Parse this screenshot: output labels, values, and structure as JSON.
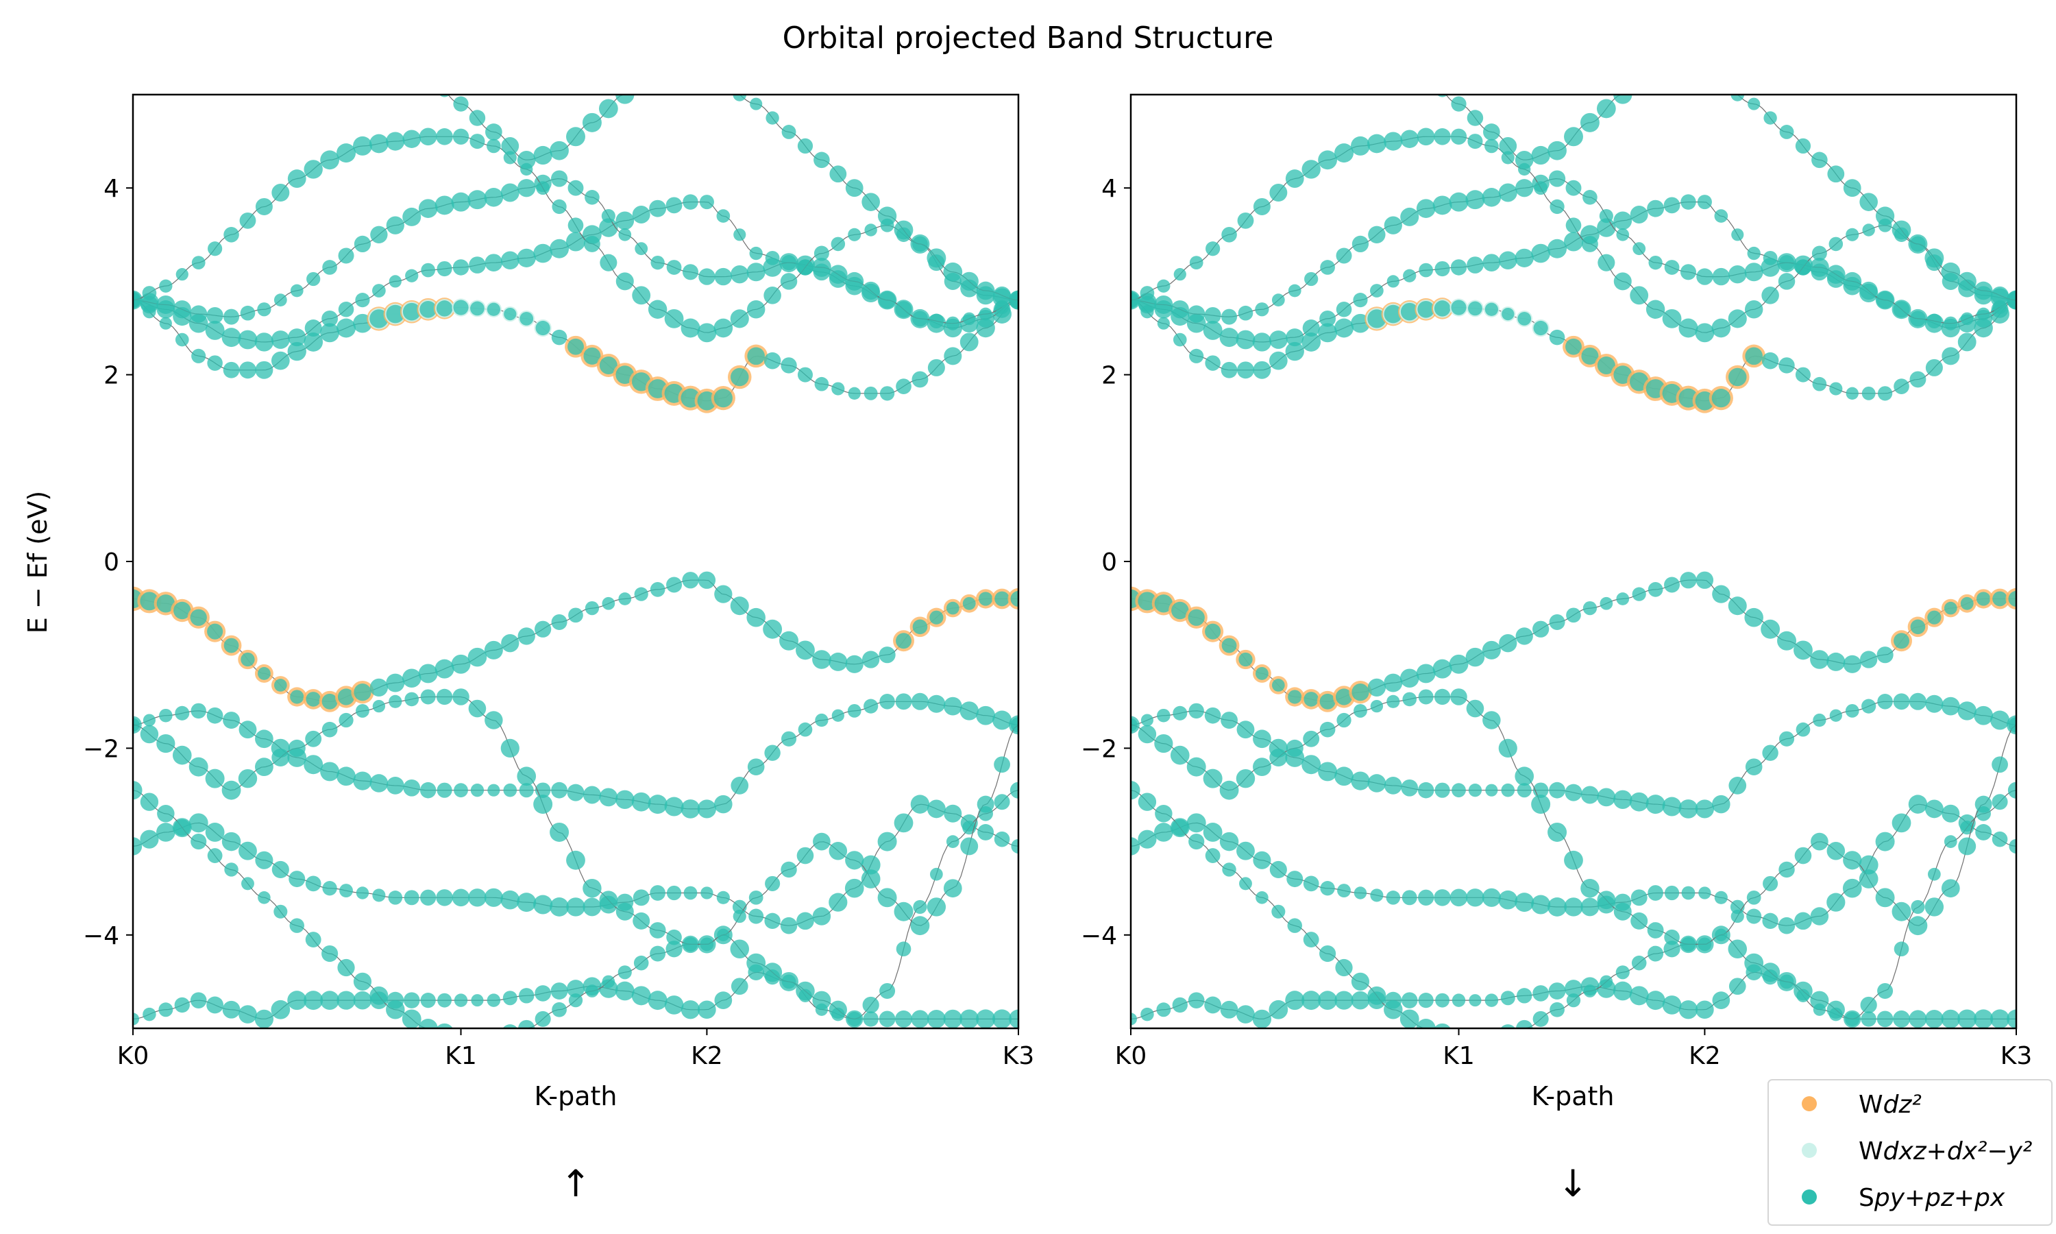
{
  "title": "Orbital projected Band Structure",
  "colors": {
    "wdz2": "#fdb462",
    "wdxz": "#ccf1ea",
    "spypzpx": "#2ebfb0",
    "band_line": "#6f6f6f"
  },
  "legend": {
    "placement": "lower-right",
    "items": [
      {
        "prefix": "W",
        "label": "dz²"
      },
      {
        "prefix": "W",
        "label": "dxz+dx²−y²"
      },
      {
        "prefix": "S",
        "label": "py+pz+px"
      }
    ]
  },
  "panels": [
    {
      "xlabel": "K-path",
      "ylabel": "E − Ef (eV)",
      "spin_label": "↑"
    },
    {
      "xlabel": "K-path",
      "ylabel": "",
      "spin_label": "↓"
    }
  ],
  "chart_data": {
    "type": "line",
    "x_ticks": [
      "K0",
      "K1",
      "K2",
      "K3"
    ],
    "x_tick_positions": [
      0,
      1,
      1.75,
      2.7
    ],
    "xlim": [
      0,
      2.7
    ],
    "ylim": [
      -5,
      5
    ],
    "y_ticks": [
      -4,
      -2,
      0,
      2,
      4
    ],
    "y_tick_labels": [
      "−4",
      "−2",
      "0",
      "2",
      "4"
    ],
    "grid": false,
    "bands": [
      {
        "x": [
          0,
          0.1,
          0.2,
          0.3,
          0.4,
          0.5,
          0.6,
          0.7,
          0.8,
          0.9,
          1.0,
          1.1,
          1.2,
          1.3,
          1.4,
          1.5,
          1.6,
          1.7,
          1.75,
          1.8,
          1.9,
          2.0,
          2.1,
          2.2,
          2.3,
          2.4,
          2.5,
          2.6,
          2.7
        ],
        "y": [
          -4.9,
          -4.8,
          -4.7,
          -4.8,
          -4.9,
          -4.7,
          -4.7,
          -4.7,
          -4.7,
          -4.7,
          -4.7,
          -4.7,
          -4.65,
          -4.6,
          -4.55,
          -4.6,
          -4.7,
          -4.8,
          -4.8,
          -4.7,
          -4.4,
          -4.5,
          -4.8,
          -4.9,
          -4.9,
          -4.9,
          -4.9,
          -4.9,
          -4.9
        ],
        "weight": "s"
      },
      {
        "x": [
          0,
          0.1,
          0.2,
          0.3,
          0.4,
          0.5,
          0.6,
          0.7,
          0.8,
          0.9,
          1.0,
          1.1,
          1.2,
          1.3,
          1.4,
          1.5,
          1.6,
          1.7,
          1.75,
          1.8,
          1.9,
          2.0,
          2.1,
          2.2,
          2.3,
          2.4,
          2.5,
          2.6,
          2.7
        ],
        "y": [
          -3.05,
          -2.9,
          -2.8,
          -3.0,
          -3.2,
          -3.4,
          -3.5,
          -3.55,
          -3.6,
          -3.6,
          -3.6,
          -3.6,
          -3.65,
          -3.7,
          -3.7,
          -3.65,
          -3.55,
          -3.55,
          -3.55,
          -3.6,
          -3.8,
          -3.9,
          -3.8,
          -3.5,
          -3.0,
          -2.6,
          -2.7,
          -2.9,
          -3.05
        ],
        "weight": "s"
      },
      {
        "x": [
          0,
          0.1,
          0.2,
          0.3,
          0.4,
          0.5,
          0.6,
          0.7,
          0.8,
          0.9,
          1.0,
          1.1,
          1.2,
          1.3,
          1.4,
          1.5,
          1.6,
          1.7,
          1.75,
          1.8,
          1.9,
          2.0,
          2.1,
          2.2,
          2.3,
          2.4,
          2.5,
          2.6,
          2.7
        ],
        "y": [
          -2.45,
          -2.7,
          -3.0,
          -3.3,
          -3.6,
          -3.9,
          -4.2,
          -4.5,
          -4.8,
          -5.0,
          -5.1,
          -5.1,
          -5.0,
          -4.8,
          -4.6,
          -4.4,
          -4.2,
          -4.1,
          -4.1,
          -4.0,
          -4.3,
          -4.5,
          -4.7,
          -4.9,
          -4.6,
          -3.7,
          -3.0,
          -2.7,
          -2.45
        ],
        "weight": "s"
      },
      {
        "x": [
          0,
          0.1,
          0.2,
          0.3,
          0.4,
          0.5,
          0.6,
          0.7,
          0.8,
          0.9,
          1.0,
          1.1,
          1.2,
          1.3,
          1.4,
          1.5,
          1.6,
          1.7,
          1.75,
          1.8,
          1.9,
          2.0,
          2.1,
          2.2,
          2.3,
          2.4,
          2.5,
          2.6,
          2.7
        ],
        "y": [
          -1.75,
          -1.65,
          -1.6,
          -1.7,
          -1.9,
          -2.1,
          -2.25,
          -2.35,
          -2.4,
          -2.45,
          -2.45,
          -2.45,
          -2.45,
          -2.45,
          -2.5,
          -2.55,
          -2.6,
          -2.65,
          -2.65,
          -2.6,
          -2.2,
          -1.9,
          -1.7,
          -1.6,
          -1.5,
          -1.5,
          -1.55,
          -1.65,
          -1.75
        ],
        "weight": "s"
      },
      {
        "x": [
          0,
          0.1,
          0.2,
          0.3,
          0.4,
          0.5,
          0.6,
          0.7,
          0.8,
          0.9,
          1.0,
          1.1,
          1.2,
          1.3,
          1.4,
          1.5,
          1.6,
          1.7,
          1.75,
          1.8,
          1.9,
          2.0,
          2.1,
          2.2,
          2.3,
          2.4,
          2.5,
          2.6,
          2.7
        ],
        "y": [
          -1.75,
          -1.95,
          -2.2,
          -2.45,
          -2.2,
          -2.0,
          -1.8,
          -1.6,
          -1.5,
          -1.45,
          -1.45,
          -1.7,
          -2.3,
          -2.9,
          -3.5,
          -3.75,
          -3.95,
          -4.1,
          -4.1,
          -4.0,
          -3.6,
          -3.3,
          -3.0,
          -3.2,
          -3.6,
          -3.9,
          -3.5,
          -2.6,
          -1.75
        ],
        "weight": "s"
      },
      {
        "x": [
          0,
          0.1,
          0.2,
          0.3,
          0.4,
          0.5,
          0.6,
          0.7,
          0.8,
          0.9,
          1.0,
          1.1,
          1.2,
          1.3,
          1.4,
          1.5,
          1.6,
          1.7,
          1.75,
          1.8,
          1.9,
          2.0,
          2.1,
          2.2,
          2.3,
          2.4,
          2.5,
          2.6,
          2.7
        ],
        "y": [
          -0.4,
          -0.45,
          -0.6,
          -0.9,
          -1.2,
          -1.45,
          -1.5,
          -1.4,
          -1.3,
          -1.2,
          -1.1,
          -0.95,
          -0.8,
          -0.65,
          -0.5,
          -0.4,
          -0.3,
          -0.2,
          -0.2,
          -0.35,
          -0.6,
          -0.85,
          -1.05,
          -1.1,
          -1.0,
          -0.7,
          -0.5,
          -0.4,
          -0.4
        ],
        "weight": "mixed"
      },
      {
        "x": [
          0,
          0.1,
          0.2,
          0.3,
          0.4,
          0.5,
          0.6,
          0.7,
          0.8,
          0.9,
          1.0,
          1.1,
          1.2,
          1.3,
          1.4,
          1.5,
          1.6,
          1.7,
          1.75,
          1.8,
          1.9,
          2.0,
          2.1,
          2.2,
          2.3,
          2.4,
          2.5,
          2.6,
          2.7
        ],
        "y": [
          2.8,
          2.55,
          2.2,
          2.05,
          2.05,
          2.25,
          2.45,
          2.55,
          2.65,
          2.7,
          2.72,
          2.7,
          2.6,
          2.4,
          2.2,
          2.0,
          1.85,
          1.75,
          1.72,
          1.75,
          2.2,
          2.1,
          1.9,
          1.8,
          1.8,
          1.95,
          2.2,
          2.5,
          2.8
        ],
        "weight": "mixed"
      },
      {
        "x": [
          0,
          0.1,
          0.2,
          0.3,
          0.4,
          0.5,
          0.6,
          0.7,
          0.8,
          0.9,
          1.0,
          1.1,
          1.2,
          1.3,
          1.4,
          1.5,
          1.6,
          1.7,
          1.75,
          1.8,
          1.9,
          2.0,
          2.1,
          2.2,
          2.3,
          2.4,
          2.5,
          2.6,
          2.7
        ],
        "y": [
          2.8,
          2.7,
          2.55,
          2.4,
          2.35,
          2.4,
          2.6,
          2.8,
          3.0,
          3.12,
          3.15,
          3.2,
          3.25,
          3.35,
          3.5,
          3.65,
          3.78,
          3.85,
          3.85,
          3.7,
          3.3,
          3.2,
          3.1,
          2.95,
          2.8,
          2.6,
          2.5,
          2.6,
          2.8
        ],
        "weight": "s"
      },
      {
        "x": [
          0,
          0.1,
          0.2,
          0.3,
          0.4,
          0.5,
          0.6,
          0.7,
          0.8,
          0.9,
          1.0,
          1.1,
          1.2,
          1.3,
          1.4,
          1.5,
          1.6,
          1.7,
          1.75,
          1.8,
          1.9,
          2.0,
          2.1,
          2.2,
          2.3,
          2.4,
          2.5,
          2.6,
          2.7
        ],
        "y": [
          2.8,
          2.75,
          2.65,
          2.62,
          2.7,
          2.9,
          3.15,
          3.4,
          3.6,
          3.78,
          3.85,
          3.9,
          4.0,
          4.1,
          3.9,
          3.5,
          3.2,
          3.1,
          3.05,
          3.05,
          3.1,
          3.2,
          3.15,
          3.0,
          2.8,
          2.6,
          2.55,
          2.65,
          2.8
        ],
        "weight": "s"
      },
      {
        "x": [
          0,
          0.1,
          0.2,
          0.3,
          0.4,
          0.5,
          0.6,
          0.7,
          0.8,
          0.9,
          1.0,
          1.1,
          1.2,
          1.3,
          1.4,
          1.5,
          1.6,
          1.7,
          1.75,
          1.8,
          1.9,
          2.0,
          2.1,
          2.2,
          2.3,
          2.4,
          2.5,
          2.6,
          2.7
        ],
        "y": [
          2.8,
          2.95,
          3.2,
          3.5,
          3.8,
          4.1,
          4.3,
          4.45,
          4.5,
          4.55,
          4.55,
          4.45,
          4.2,
          3.8,
          3.4,
          3.0,
          2.7,
          2.5,
          2.45,
          2.5,
          2.7,
          3.0,
          3.3,
          3.5,
          3.6,
          3.4,
          3.0,
          2.85,
          2.8
        ],
        "weight": "s"
      },
      {
        "x": [
          0.9,
          1.0,
          1.1,
          1.2,
          1.3,
          1.4,
          1.5,
          1.6,
          1.7,
          1.8,
          1.9,
          2.0,
          2.1,
          2.2,
          2.3,
          2.4,
          2.5,
          2.6,
          2.7
        ],
        "y": [
          5.2,
          4.9,
          4.6,
          4.3,
          4.4,
          4.7,
          5.0,
          5.2,
          5.2,
          5.1,
          4.9,
          4.6,
          4.3,
          4.0,
          3.7,
          3.4,
          3.1,
          2.9,
          2.8
        ],
        "weight": "s"
      }
    ]
  }
}
